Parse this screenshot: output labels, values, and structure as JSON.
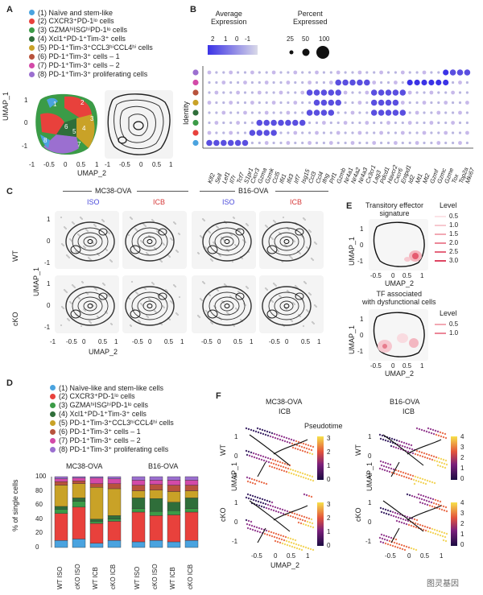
{
  "panel_letters": [
    "A",
    "B",
    "C",
    "D",
    "E",
    "F"
  ],
  "cluster_colors": [
    "#4aa3df",
    "#e8413c",
    "#3b9b47",
    "#2f6e3a",
    "#c9a227",
    "#b8533c",
    "#9b59c9",
    "#9b6fd0"
  ],
  "panel_a": {
    "legend": [
      "(1) Naïve and stem-like",
      "(2) CXCR3⁺PD-1ˡᵒ cells",
      "(3) GZMAʰⁱISGʰⁱPD-1ˡᵒ cells",
      "(4) Xcl1⁺PD-1⁺Tim-3⁺ cells",
      "(5) PD-1⁺Tim-3⁺CCL3ʰⁱCCL4ʰⁱ cells",
      "(6) PD-1⁺Tim-3⁺ cells – 1",
      "(7) PD-1⁺Tim-3⁺ cells – 2",
      "(8) PD-1⁺Tim-3⁺ proliferating cells"
    ],
    "ylabel": "UMAP_1",
    "xlabel": "UMAP_2",
    "yticks": [
      "1",
      "0",
      "-1"
    ],
    "xticks": [
      "-1",
      "-0.5",
      "0",
      "0.5",
      "1",
      "-1",
      "-0.5",
      "0",
      "0.5",
      "1"
    ],
    "cluster_labels": [
      "1",
      "2",
      "3",
      "4",
      "5",
      "6",
      "7",
      "8"
    ]
  },
  "panel_b": {
    "avg_expr_title": "Average\nExpression",
    "avg_expr_ticks": [
      "2",
      "1",
      "0",
      "-1"
    ],
    "pct_title": "Percent\nExpressed",
    "pct_ticks": [
      "25",
      "50",
      "100"
    ],
    "ylabel": "Identity",
    "genes": [
      "Klf2",
      "Sell",
      "Lef1",
      "Il7r",
      "Tcf7",
      "S1pr1",
      "Cxcr3",
      "Gzma",
      "Gzmk",
      "Ccl5",
      "Ifit1",
      "Ifit3",
      "Irf7",
      "Isg15",
      "Ccl3",
      "Ccl4",
      "Ifng",
      "Prf1",
      "Gzmb",
      "Nr4a1",
      "Nr4a2",
      "Nr4a3",
      "Cx3cr1",
      "Lag3",
      "Pdcd1",
      "Havcr2",
      "Cxcr6",
      "Entpd1",
      "Id2",
      "Mt1",
      "Mt2",
      "Gzmf",
      "Gzmc",
      "Gzme",
      "Tox",
      "Top2a",
      "Mki67"
    ]
  },
  "panel_c": {
    "groups": [
      "MC38-OVA",
      "B16-OVA"
    ],
    "conditions": [
      "ISO",
      "ICB",
      "ISO",
      "ICB"
    ],
    "rows": [
      "WT",
      "cKO"
    ],
    "ylabel": "UMAP_1",
    "xlabel": "UMAP_2",
    "yticks": [
      "1",
      "0",
      "-1"
    ],
    "xticks": [
      "-1",
      "-0.5",
      "0",
      "0.5",
      "1",
      "-0.5",
      "0",
      "0.5",
      "1",
      "-0.5",
      "0",
      "0.5",
      "1",
      "-0.5",
      "0",
      "0.5",
      "1"
    ]
  },
  "panel_d": {
    "legend": [
      "(1) Naïve-like and stem-like cells",
      "(2) CXCR3⁺PD-1ˡᵒ cells",
      "(3) GZMAʰⁱISGʰⁱPD-1ˡᵒ cells",
      "(4) Xcl1⁺PD-1⁺Tim-3⁺ cells",
      "(5) PD-1⁺Tim-3⁺CCL3ʰⁱCCL4ʰⁱ cells",
      "(6) PD-1⁺Tim-3⁺ cells – 1",
      "(7) PD-1⁺Tim-3⁺ cells – 2",
      "(8) PD-1⁺Tim-3⁺ proliferating cells"
    ],
    "groups": [
      "MC38-OVA",
      "B16-OVA"
    ],
    "ylabel": "% of single cells",
    "yticks": [
      "100",
      "80",
      "60",
      "40",
      "20",
      "0"
    ],
    "xlabels": [
      "WT ISO",
      "cKO ISO",
      "WT ICB",
      "cKO ICB",
      "WT ISO",
      "cKO ISO",
      "WT ICB",
      "cKO ICB"
    ]
  },
  "panel_e": {
    "title1": "Transitory effector\nsignature",
    "title2": "TF associated\nwith dysfunctional cells",
    "ylabel": "UMAP_1",
    "xlabel": "UMAP_2",
    "legend_title": "Level",
    "levels1": [
      "0.5",
      "1.0",
      "1.5",
      "2.0",
      "2.5",
      "3.0"
    ],
    "levels2": [
      "0.5",
      "1.0"
    ],
    "yticks": [
      "1",
      "0",
      "-1"
    ],
    "xticks": [
      "-0.5",
      "0",
      "0.5",
      "1"
    ]
  },
  "panel_f": {
    "groups": [
      "MC38-OVA",
      "B16-OVA"
    ],
    "condition": "ICB",
    "rows": [
      "WT",
      "cKO"
    ],
    "pseudotime": "Pseudotime",
    "ylabel": "UMAP_1",
    "xlabel": "UMAP_2",
    "yticks": [
      "1",
      "0",
      "-1"
    ],
    "xticks": [
      "-0.5",
      "0",
      "0.5",
      "1"
    ],
    "scale_mc38": [
      "3",
      "2",
      "1",
      "0"
    ],
    "scale_b16": [
      "4",
      "3",
      "2",
      "1",
      "0"
    ]
  },
  "watermark": "图灵基因",
  "chart_data": [
    {
      "type": "bar",
      "title": "MC38-OVA",
      "categories": [
        "WT ISO",
        "cKO ISO",
        "WT ICB",
        "cKO ICB"
      ],
      "series": [
        {
          "name": "(1) Naïve-like and stem-like cells",
          "values": [
            10,
            12,
            6,
            10
          ]
        },
        {
          "name": "(2) CXCR3⁺PD-1ˡᵒ cells",
          "values": [
            38,
            45,
            28,
            27
          ]
        },
        {
          "name": "(3) GZMAʰⁱISGʰⁱPD-1ˡᵒ cells",
          "values": [
            6,
            8,
            3,
            3
          ]
        },
        {
          "name": "(4) Xcl1⁺PD-1⁺Tim-3⁺ cells",
          "values": [
            4,
            5,
            3,
            5
          ]
        },
        {
          "name": "(5) PD-1⁺Tim-3⁺CCL3ʰⁱCCL4ʰⁱ cells",
          "values": [
            30,
            20,
            45,
            38
          ]
        },
        {
          "name": "(6) PD-1⁺Tim-3⁺ cells – 1",
          "values": [
            5,
            4,
            5,
            7
          ]
        },
        {
          "name": "(7) PD-1⁺Tim-3⁺ cells – 2",
          "values": [
            4,
            4,
            8,
            7
          ]
        },
        {
          "name": "(8) PD-1⁺Tim-3⁺ proliferating cells",
          "values": [
            3,
            2,
            2,
            3
          ]
        }
      ],
      "ylabel": "% of single cells",
      "ylim": [
        0,
        100
      ]
    },
    {
      "type": "bar",
      "title": "B16-OVA",
      "categories": [
        "WT ISO",
        "cKO ISO",
        "WT ICB",
        "cKO ICB"
      ],
      "series": [
        {
          "name": "(1) Naïve-like and stem-like cells",
          "values": [
            8,
            10,
            8,
            10
          ]
        },
        {
          "name": "(2) CXCR3⁺PD-1ˡᵒ cells",
          "values": [
            42,
            35,
            38,
            40
          ]
        },
        {
          "name": "(3) GZMAʰⁱISGʰⁱPD-1ˡᵒ cells",
          "values": [
            5,
            6,
            6,
            5
          ]
        },
        {
          "name": "(4) Xcl1⁺PD-1⁺Tim-3⁺ cells",
          "values": [
            15,
            18,
            12,
            15
          ]
        },
        {
          "name": "(5) PD-1⁺Tim-3⁺CCL3ʰⁱCCL4ʰⁱ cells",
          "values": [
            10,
            12,
            15,
            10
          ]
        },
        {
          "name": "(6) PD-1⁺Tim-3⁺ cells – 1",
          "values": [
            8,
            8,
            9,
            8
          ]
        },
        {
          "name": "(7) PD-1⁺Tim-3⁺ cells – 2",
          "values": [
            7,
            6,
            7,
            7
          ]
        },
        {
          "name": "(8) PD-1⁺Tim-3⁺ proliferating cells",
          "values": [
            5,
            5,
            5,
            5
          ]
        }
      ],
      "ylabel": "% of single cells",
      "ylim": [
        0,
        100
      ]
    }
  ]
}
